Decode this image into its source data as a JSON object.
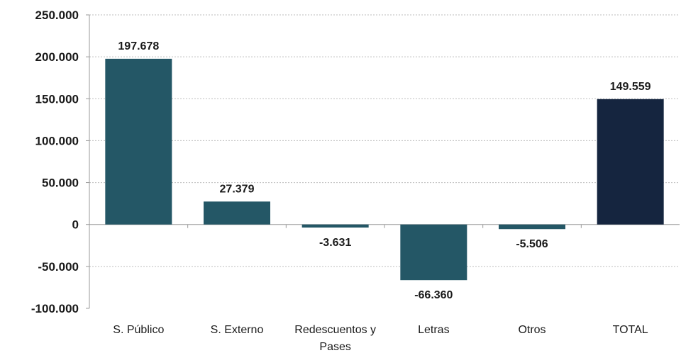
{
  "chart_data": {
    "type": "bar",
    "title": "",
    "xlabel": "",
    "ylabel": "",
    "categories": [
      [
        "S. Público"
      ],
      [
        "S. Externo"
      ],
      [
        "Redescuentos y",
        "Pases"
      ],
      [
        "Letras"
      ],
      [
        "Otros"
      ],
      [
        "TOTAL"
      ]
    ],
    "values": [
      197678,
      27379,
      -3631,
      -66360,
      -5506,
      149559
    ],
    "data_labels": [
      "197.678",
      "27.379",
      "-3.631",
      "-66.360",
      "-5.506",
      "149.559"
    ],
    "ylim": [
      -100000,
      250000
    ],
    "yticks": [
      250000,
      200000,
      150000,
      100000,
      50000,
      0,
      -50000,
      -100000
    ],
    "ytick_labels": [
      "250.000",
      "200.000",
      "150.000",
      "100.000",
      "50.000",
      "0",
      "-50.000",
      "-100.000"
    ],
    "colors": [
      "#245766",
      "#245766",
      "#245766",
      "#245766",
      "#245766",
      "#15253f"
    ],
    "grid": true,
    "legend": "none"
  }
}
